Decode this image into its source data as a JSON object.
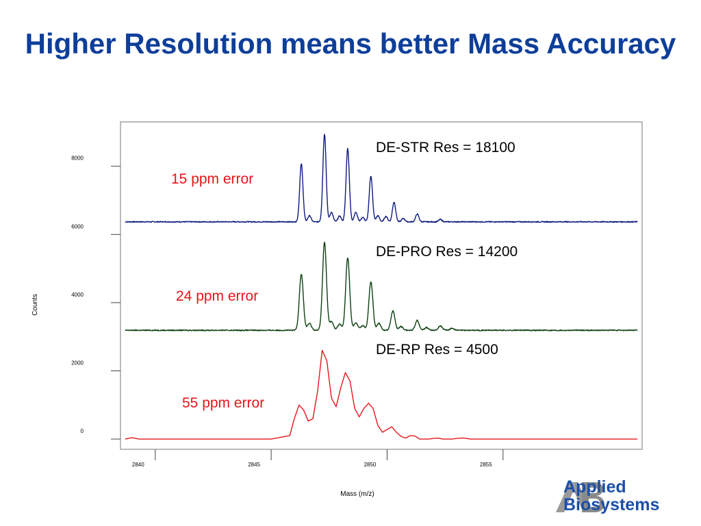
{
  "title": "Higher Resolution means better Mass Accuracy",
  "logo": {
    "line1": "Applied",
    "line2": "Biosystems",
    "mark": "AB",
    "color": "#1b4fa8"
  },
  "chart_data": {
    "type": "line",
    "xlabel": "Mass (m/z)",
    "ylabel": "Counts",
    "xlim": [
      2838.5,
      2861
    ],
    "ylim": [
      -300,
      9300
    ],
    "xticks": [
      2840,
      2845,
      2850,
      2855
    ],
    "yticks": [
      0,
      2000,
      4000,
      6000,
      8000
    ],
    "grid": false,
    "series": [
      {
        "name": "DE-STR Res = 18100",
        "annotation": "15 ppm error",
        "color": "#0d1a80",
        "baseline": 6370,
        "width": 0.07,
        "peaks": [
          [
            2846.3,
            1700
          ],
          [
            2846.65,
            180
          ],
          [
            2847.3,
            2580
          ],
          [
            2847.6,
            280
          ],
          [
            2847.95,
            170
          ],
          [
            2848.3,
            2150
          ],
          [
            2848.65,
            280
          ],
          [
            2848.95,
            130
          ],
          [
            2849.3,
            1350
          ],
          [
            2849.6,
            180
          ],
          [
            2849.95,
            160
          ],
          [
            2850.3,
            580
          ],
          [
            2850.7,
            100
          ],
          [
            2851.3,
            230
          ],
          [
            2852.3,
            70
          ]
        ]
      },
      {
        "name": "DE-PRO Res = 14200",
        "annotation": "24 ppm error",
        "color": "#0c3f10",
        "baseline": 3190,
        "width": 0.085,
        "peaks": [
          [
            2846.3,
            1650
          ],
          [
            2846.65,
            200
          ],
          [
            2847.3,
            2580
          ],
          [
            2847.6,
            250
          ],
          [
            2847.95,
            180
          ],
          [
            2848.3,
            2130
          ],
          [
            2848.65,
            220
          ],
          [
            2848.95,
            140
          ],
          [
            2849.3,
            1430
          ],
          [
            2849.65,
            200
          ],
          [
            2850.25,
            570
          ],
          [
            2850.6,
            110
          ],
          [
            2851.3,
            290
          ],
          [
            2851.7,
            80
          ],
          [
            2852.3,
            130
          ],
          [
            2852.8,
            60
          ]
        ]
      },
      {
        "name": "DE-RP Res = 4500",
        "annotation": "55 ppm error",
        "color": "#e8141a",
        "baseline": 0,
        "x": [
          2838.7,
          2839.0,
          2839.3,
          2840.0,
          2841.0,
          2842.0,
          2843.0,
          2844.0,
          2845.0,
          2845.8,
          2846.0,
          2846.2,
          2846.4,
          2846.6,
          2846.8,
          2847.0,
          2847.2,
          2847.4,
          2847.6,
          2847.8,
          2848.0,
          2848.2,
          2848.4,
          2848.6,
          2848.8,
          2849.0,
          2849.2,
          2849.4,
          2849.6,
          2849.8,
          2850.0,
          2850.2,
          2850.4,
          2850.6,
          2850.8,
          2851.0,
          2851.2,
          2851.4,
          2851.6,
          2851.8,
          2852.0,
          2852.2,
          2852.4,
          2852.6,
          2852.8,
          2853.0,
          2853.3,
          2853.6,
          2854.0,
          2855.0,
          2856.0,
          2857.0,
          2858.0,
          2859.0,
          2860.0,
          2860.8
        ],
        "y": [
          0,
          40,
          0,
          0,
          0,
          0,
          0,
          0,
          0,
          100,
          600,
          1000,
          850,
          530,
          600,
          1400,
          2600,
          2300,
          1200,
          950,
          1500,
          1950,
          1700,
          900,
          650,
          900,
          1050,
          900,
          400,
          200,
          280,
          360,
          200,
          80,
          30,
          100,
          90,
          0,
          0,
          0,
          20,
          30,
          0,
          0,
          0,
          20,
          30,
          0,
          0,
          0,
          0,
          0,
          0,
          0,
          0,
          0
        ]
      }
    ]
  }
}
